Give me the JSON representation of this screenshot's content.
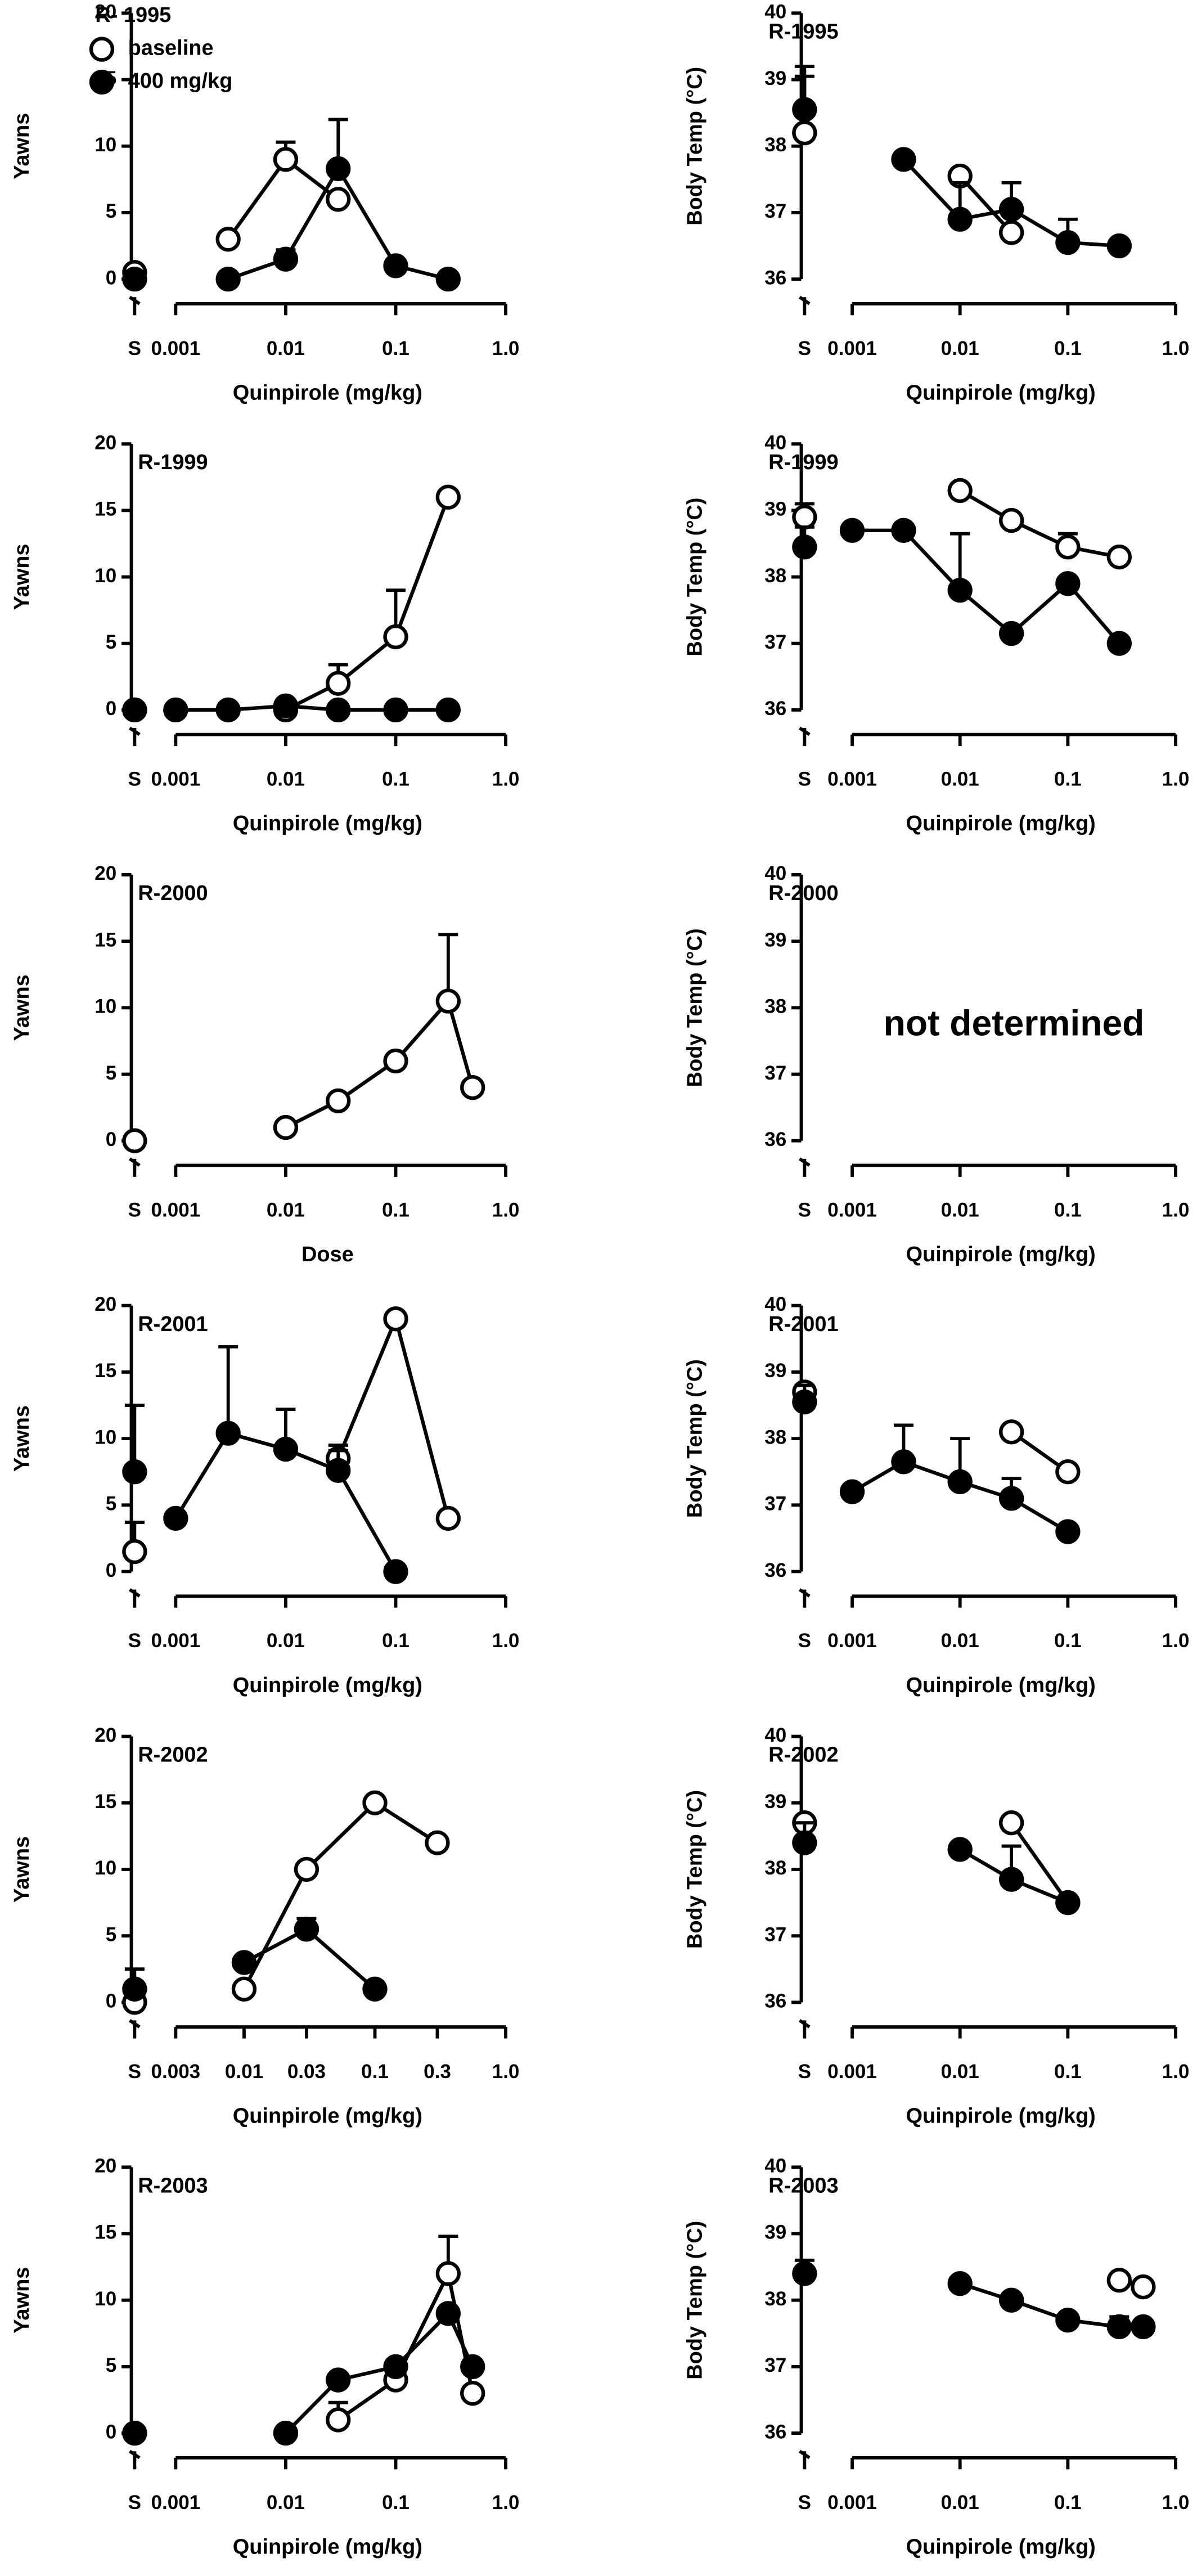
{
  "chart_data": [
    {
      "type": "scatter",
      "title": "R- 1995",
      "x_label": "Quinpirole (mg/kg)",
      "y_label": "Yawns",
      "xscale": "log",
      "xlim": [
        0.001,
        1
      ],
      "xticks": [
        0.001,
        0.01,
        0.1,
        {
          "value": 1,
          "label": "1.0"
        }
      ],
      "ylim": [
        0,
        20
      ],
      "yticks": [
        0,
        5,
        10,
        15,
        20
      ],
      "saline_label": "S",
      "legend": "upper left",
      "series": [
        {
          "name": "baseline",
          "marker": "open",
          "color": "#000000",
          "saline": 0.5,
          "saline_error": null,
          "x": [
            0.003,
            0.01,
            0.03
          ],
          "values": [
            3,
            9,
            6
          ],
          "errors": [
            null,
            1.3,
            null
          ]
        },
        {
          "name": "400 mg/kg",
          "marker": "filled",
          "color": "#000000",
          "saline": 0,
          "saline_error": null,
          "x": [
            0.003,
            0.01,
            0.03,
            0.1,
            0.3
          ],
          "values": [
            0,
            1.5,
            8.3,
            1,
            0
          ],
          "errors": [
            null,
            0.7,
            3.7,
            null,
            null
          ]
        }
      ]
    },
    {
      "type": "scatter",
      "title": "R-1995",
      "x_label": "Quinpirole (mg/kg)",
      "y_label": "Body Temp (°C)",
      "xscale": "log",
      "xlim": [
        0.001,
        1
      ],
      "xticks": [
        0.001,
        0.01,
        0.1,
        {
          "value": 1,
          "label": "1.0"
        }
      ],
      "ylim": [
        36,
        40
      ],
      "yticks": [
        36,
        37,
        38,
        39,
        40
      ],
      "saline_label": "S",
      "series": [
        {
          "marker": "open",
          "color": "#000000",
          "saline": 38.2,
          "saline_error": 1.0,
          "x": [
            0.01,
            0.03
          ],
          "values": [
            37.55,
            36.7
          ],
          "errors": [
            null,
            null
          ]
        },
        {
          "marker": "filled",
          "color": "#000000",
          "saline": 38.55,
          "saline_error": 0.5,
          "x": [
            0.003,
            0.01,
            0.03,
            0.1,
            0.3
          ],
          "values": [
            37.8,
            36.9,
            37.05,
            36.55,
            36.5
          ],
          "errors": [
            null,
            0.55,
            0.4,
            0.35,
            null
          ]
        }
      ]
    },
    {
      "type": "scatter",
      "title": "R-1999",
      "x_label": "Quinpirole (mg/kg)",
      "y_label": "Yawns",
      "xscale": "log",
      "xlim": [
        0.001,
        1
      ],
      "xticks": [
        0.001,
        0.01,
        0.1,
        {
          "value": 1,
          "label": "1.0"
        }
      ],
      "ylim": [
        0,
        20
      ],
      "yticks": [
        0,
        5,
        10,
        15,
        20
      ],
      "saline_label": "S",
      "series": [
        {
          "marker": "open",
          "color": "#000000",
          "saline": 0,
          "saline_error": null,
          "x": [
            0.01,
            0.03,
            0.1,
            0.3
          ],
          "values": [
            0,
            2,
            5.5,
            16
          ],
          "errors": [
            null,
            1.4,
            3.5,
            null
          ]
        },
        {
          "marker": "filled",
          "color": "#000000",
          "saline": 0,
          "saline_error": null,
          "x": [
            0.001,
            0.003,
            0.01,
            0.03,
            0.1,
            0.3
          ],
          "values": [
            0,
            0,
            0.3,
            0,
            0,
            0
          ],
          "errors": [
            null,
            null,
            null,
            null,
            null,
            null
          ]
        }
      ]
    },
    {
      "type": "scatter",
      "title": "R-1999",
      "x_label": "Quinpirole (mg/kg)",
      "y_label": "Body Temp (°C)",
      "xscale": "log",
      "xlim": [
        0.001,
        1
      ],
      "xticks": [
        0.001,
        0.01,
        0.1,
        {
          "value": 1,
          "label": "1.0"
        }
      ],
      "ylim": [
        36,
        40
      ],
      "yticks": [
        36,
        37,
        38,
        39,
        40
      ],
      "saline_label": "S",
      "series": [
        {
          "marker": "open",
          "color": "#000000",
          "saline": 38.9,
          "saline_error": 0.2,
          "x": [
            0.01,
            0.03,
            0.1,
            0.3
          ],
          "values": [
            39.3,
            38.85,
            38.45,
            38.3
          ],
          "errors": [
            null,
            null,
            0.2,
            null
          ]
        },
        {
          "marker": "filled",
          "color": "#000000",
          "saline": 38.45,
          "saline_error": 0.3,
          "x": [
            0.001,
            0.003,
            0.01,
            0.03,
            0.1,
            0.3
          ],
          "values": [
            38.7,
            38.7,
            37.8,
            37.15,
            37.9,
            37.0
          ],
          "errors": [
            null,
            null,
            0.85,
            null,
            null,
            null
          ]
        }
      ]
    },
    {
      "type": "scatter",
      "title": "R-2000",
      "x_label": "Dose",
      "y_label": "Yawns",
      "xscale": "log",
      "xlim": [
        0.001,
        1
      ],
      "xticks": [
        0.001,
        0.01,
        0.1,
        {
          "value": 1,
          "label": "1.0"
        }
      ],
      "ylim": [
        0,
        20
      ],
      "yticks": [
        0,
        5,
        10,
        15,
        20
      ],
      "saline_label": "S",
      "series": [
        {
          "marker": "open",
          "color": "#000000",
          "saline": 0,
          "saline_error": null,
          "x": [
            0.01,
            0.03,
            0.1,
            0.3,
            0.5
          ],
          "values": [
            1,
            3,
            6,
            10.5,
            4
          ],
          "errors": [
            null,
            null,
            null,
            5,
            null
          ]
        }
      ]
    },
    {
      "type": "scatter",
      "title": "R-2000",
      "x_label": "Quinpirole (mg/kg)",
      "y_label": "Body Temp (°C)",
      "xscale": "log",
      "xlim": [
        0.001,
        1
      ],
      "xticks": [
        0.001,
        0.01,
        0.1,
        {
          "value": 1,
          "label": "1.0"
        }
      ],
      "ylim": [
        36,
        40
      ],
      "yticks": [
        36,
        37,
        38,
        39,
        40
      ],
      "saline_label": "S",
      "annotation": "not determined",
      "series": []
    },
    {
      "type": "scatter",
      "title": "R-2001",
      "x_label": "Quinpirole (mg/kg)",
      "y_label": "Yawns",
      "xscale": "log",
      "xlim": [
        0.001,
        1
      ],
      "xticks": [
        0.001,
        0.01,
        0.1,
        {
          "value": 1,
          "label": "1.0"
        }
      ],
      "ylim": [
        0,
        20
      ],
      "yticks": [
        0,
        5,
        10,
        15,
        20
      ],
      "saline_label": "S",
      "series": [
        {
          "marker": "open",
          "color": "#000000",
          "saline": 1.5,
          "saline_error": 2.2,
          "x": [
            0.03,
            0.1,
            0.3
          ],
          "values": [
            8.5,
            19,
            4
          ],
          "errors": [
            1,
            null,
            null
          ]
        },
        {
          "marker": "filled",
          "color": "#000000",
          "saline": 7.5,
          "saline_error": 5,
          "x": [
            0.001,
            0.003,
            0.01,
            0.03,
            0.1
          ],
          "values": [
            4,
            10.4,
            9.2,
            7.6,
            0
          ],
          "errors": [
            null,
            6.5,
            3,
            1.5,
            null
          ]
        }
      ]
    },
    {
      "type": "scatter",
      "title": "R-2001",
      "x_label": "Quinpirole (mg/kg)",
      "y_label": "Body Temp (°C)",
      "xscale": "log",
      "xlim": [
        0.001,
        1
      ],
      "xticks": [
        0.001,
        0.01,
        0.1,
        {
          "value": 1,
          "label": "1.0"
        }
      ],
      "ylim": [
        36,
        40
      ],
      "yticks": [
        36,
        37,
        38,
        39,
        40
      ],
      "saline_label": "S",
      "series": [
        {
          "marker": "open",
          "color": "#000000",
          "saline": 38.7,
          "saline_error": null,
          "x": [
            0.03,
            0.1
          ],
          "values": [
            38.1,
            37.5
          ],
          "errors": [
            null,
            null
          ]
        },
        {
          "marker": "filled",
          "color": "#000000",
          "saline": 38.55,
          "saline_error": 0.25,
          "x": [
            0.001,
            0.003,
            0.01,
            0.03,
            0.1
          ],
          "values": [
            37.2,
            37.65,
            37.35,
            37.1,
            36.6
          ],
          "errors": [
            null,
            0.55,
            0.65,
            0.3,
            null
          ]
        }
      ]
    },
    {
      "type": "scatter",
      "title": "R-2002",
      "x_label": "Quinpirole (mg/kg)",
      "y_label": "Yawns",
      "xscale": "log",
      "xlim": [
        0.003,
        1
      ],
      "xticks": [
        0.003,
        0.01,
        0.03,
        0.1,
        0.3,
        {
          "value": 1,
          "label": "1.0"
        }
      ],
      "ylim": [
        0,
        20
      ],
      "yticks": [
        0,
        5,
        10,
        15,
        20
      ],
      "saline_label": "S",
      "series": [
        {
          "marker": "open",
          "color": "#000000",
          "saline": 0,
          "saline_error": null,
          "x": [
            0.01,
            0.03,
            0.1,
            0.3
          ],
          "values": [
            1,
            10,
            15,
            12
          ],
          "errors": [
            null,
            null,
            null,
            null
          ]
        },
        {
          "marker": "filled",
          "color": "#000000",
          "saline": 1,
          "saline_error": 1.5,
          "x": [
            0.01,
            0.03,
            0.1
          ],
          "values": [
            3,
            5.5,
            1
          ],
          "errors": [
            null,
            0.8,
            null
          ]
        }
      ]
    },
    {
      "type": "scatter",
      "title": "R-2002",
      "x_label": "Quinpirole (mg/kg)",
      "y_label": "Body Temp (°C)",
      "xscale": "log",
      "xlim": [
        0.001,
        1
      ],
      "xticks": [
        0.001,
        0.01,
        0.1,
        {
          "value": 1,
          "label": "1.0"
        }
      ],
      "ylim": [
        36,
        40
      ],
      "yticks": [
        36,
        37,
        38,
        39,
        40
      ],
      "saline_label": "S",
      "series": [
        {
          "marker": "open",
          "color": "#000000",
          "saline": 38.7,
          "saline_error": null,
          "x": [
            0.03,
            0.1
          ],
          "values": [
            38.7,
            37.5
          ],
          "errors": [
            null,
            null
          ]
        },
        {
          "marker": "filled",
          "color": "#000000",
          "saline": 38.4,
          "saline_error": 0.3,
          "x": [
            0.01,
            0.03,
            0.1
          ],
          "values": [
            38.3,
            37.85,
            37.5
          ],
          "errors": [
            null,
            0.5,
            null
          ]
        }
      ]
    },
    {
      "type": "scatter",
      "title": "R-2003",
      "x_label": "Quinpirole (mg/kg)",
      "y_label": "Yawns",
      "xscale": "log",
      "xlim": [
        0.001,
        1
      ],
      "xticks": [
        0.001,
        0.01,
        0.1,
        {
          "value": 1,
          "label": "1.0"
        }
      ],
      "ylim": [
        0,
        20
      ],
      "yticks": [
        0,
        5,
        10,
        15,
        20
      ],
      "saline_label": "S",
      "series": [
        {
          "marker": "open",
          "color": "#000000",
          "saline": 0,
          "saline_error": null,
          "x": [
            0.03,
            0.1,
            0.3,
            0.5
          ],
          "values": [
            1,
            4,
            12,
            3
          ],
          "errors": [
            1.3,
            null,
            2.8,
            null
          ]
        },
        {
          "marker": "filled",
          "color": "#000000",
          "saline": 0,
          "saline_error": null,
          "x": [
            0.01,
            0.03,
            0.1,
            0.3,
            0.5
          ],
          "values": [
            0,
            4,
            5,
            9,
            5
          ],
          "errors": [
            null,
            null,
            null,
            null,
            null
          ]
        }
      ]
    },
    {
      "type": "scatter",
      "title": "R-2003",
      "x_label": "Quinpirole (mg/kg)",
      "y_label": "Body Temp (°C)",
      "xscale": "log",
      "xlim": [
        0.001,
        1
      ],
      "xticks": [
        0.001,
        0.01,
        0.1,
        {
          "value": 1,
          "label": "1.0"
        }
      ],
      "ylim": [
        36,
        40
      ],
      "yticks": [
        36,
        37,
        38,
        39,
        40
      ],
      "saline_label": "S",
      "series": [
        {
          "marker": "open",
          "color": "#000000",
          "saline": null,
          "saline_error": null,
          "x": [
            0.3,
            0.5
          ],
          "values": [
            38.3,
            38.2
          ],
          "errors": [
            null,
            null
          ]
        },
        {
          "marker": "filled",
          "color": "#000000",
          "saline": 38.4,
          "saline_error": 0.2,
          "x": [
            0.01,
            0.03,
            0.1,
            0.3,
            0.5
          ],
          "values": [
            38.25,
            38.0,
            37.7,
            37.6,
            37.6
          ],
          "errors": [
            null,
            null,
            null,
            0.15,
            null
          ]
        }
      ]
    }
  ]
}
